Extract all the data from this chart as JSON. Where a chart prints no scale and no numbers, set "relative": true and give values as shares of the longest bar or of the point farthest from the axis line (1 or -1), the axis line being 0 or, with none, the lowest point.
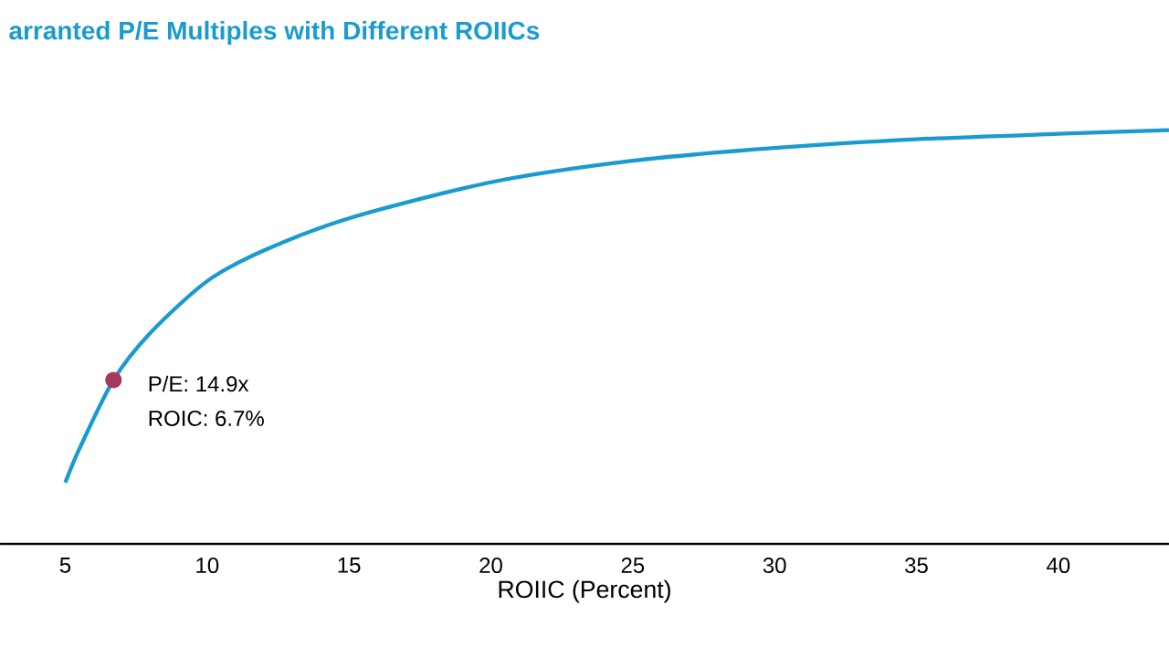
{
  "chart_data": {
    "type": "line",
    "title": "arranted P/E Multiples with Different ROIICs",
    "xlabel": "ROIIC (Percent)",
    "relative": true,
    "xlim": [
      2.7,
      43.9
    ],
    "xticks": [
      5,
      10,
      15,
      20,
      25,
      30,
      35,
      40
    ],
    "tick_labels": "x",
    "series": [
      {
        "color": "#1a9bd0",
        "marker": "none",
        "x": [
          5,
          5.5,
          6.7,
          8,
          10,
          12,
          15,
          20,
          25,
          30,
          35,
          40,
          43.9
        ],
        "values": [
          0.148,
          0.23,
          0.396,
          0.51,
          0.635,
          0.709,
          0.787,
          0.874,
          0.926,
          0.957,
          0.978,
          0.991,
          1
        ]
      },
      {
        "type": "scatter",
        "color": "#a8385a",
        "marker": "circle",
        "x": [
          6.7
        ],
        "values": [
          0.396
        ]
      }
    ],
    "annotations": [
      {
        "text": "P/E:     14.9x",
        "x": 6.7,
        "y": 0.396
      },
      {
        "text": "ROIC: 6.7%",
        "x": 6.7,
        "y": 0.396
      }
    ]
  }
}
